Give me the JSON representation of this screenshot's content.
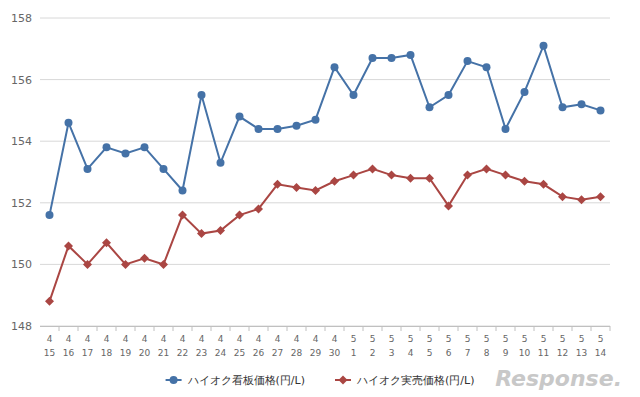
{
  "chart_data": {
    "type": "line",
    "categories": [
      "4\n15",
      "4\n16",
      "4\n17",
      "4\n18",
      "4\n19",
      "4\n20",
      "4\n21",
      "4\n22",
      "4\n23",
      "4\n24",
      "4\n25",
      "4\n26",
      "4\n27",
      "4\n28",
      "4\n29",
      "4\n30",
      "5\n1",
      "5\n2",
      "5\n3",
      "5\n4",
      "5\n5",
      "5\n6",
      "5\n7",
      "5\n8",
      "5\n9",
      "5\n10",
      "5\n11",
      "5\n12",
      "5\n13",
      "5\n14"
    ],
    "series": [
      {
        "name": "ハイオク看板価格(円/L)",
        "color": "#4572a7",
        "marker": "circle",
        "values": [
          151.6,
          154.6,
          153.1,
          153.8,
          153.6,
          153.8,
          153.1,
          152.4,
          155.5,
          153.3,
          154.8,
          154.4,
          154.4,
          154.5,
          154.7,
          156.4,
          155.5,
          156.7,
          156.7,
          156.8,
          155.1,
          155.5,
          156.6,
          156.4,
          154.4,
          155.6,
          157.1,
          155.1,
          155.2,
          155.0
        ]
      },
      {
        "name": "ハイオク実売価格(円/L)",
        "color": "#aa4643",
        "marker": "diamond",
        "values": [
          148.8,
          150.6,
          150.0,
          150.7,
          150.0,
          150.2,
          150.0,
          151.6,
          151.0,
          151.1,
          151.6,
          151.8,
          152.6,
          152.5,
          152.4,
          152.7,
          152.9,
          153.1,
          152.9,
          152.8,
          152.8,
          151.9,
          152.9,
          153.1,
          152.9,
          152.7,
          152.6,
          152.2,
          152.1,
          152.2
        ]
      }
    ],
    "ylim": [
      148,
      158
    ],
    "yticks": [
      148,
      150,
      152,
      154,
      156,
      158
    ],
    "grid": true,
    "legend": "bottom",
    "annotations": [
      "Response."
    ]
  }
}
